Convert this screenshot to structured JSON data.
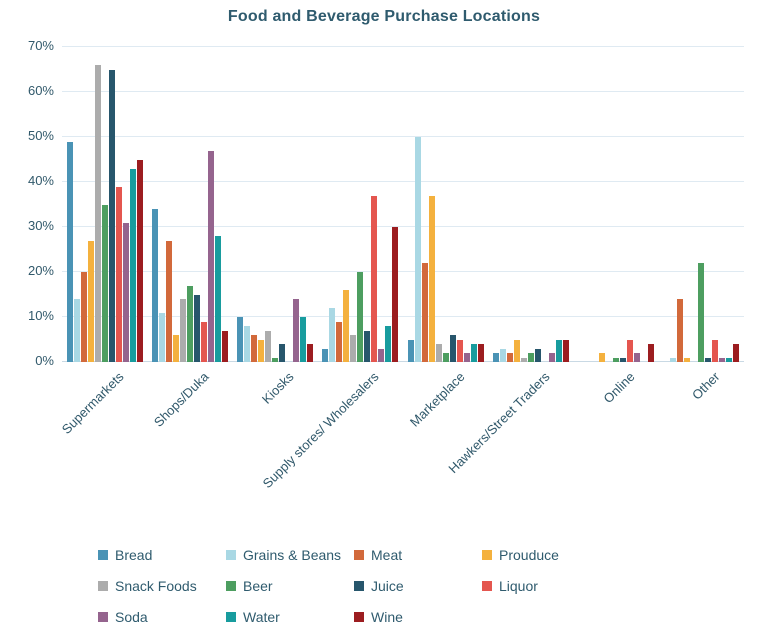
{
  "title": "Food and Beverage Purchase Locations",
  "chart_data": {
    "type": "bar",
    "title": "Food and Beverage Purchase Locations",
    "categories": [
      "Supermarkets",
      "Shops/Duka",
      "Kiosks",
      "Supply stores/ Wholesalers",
      "Marketplace",
      "Hawkers/Street Traders",
      "Online",
      "Other"
    ],
    "unit": "%",
    "ylim": [
      0,
      70
    ],
    "ytick_step": 10,
    "ytick_labels": [
      "0%",
      "10%",
      "20%",
      "30%",
      "40%",
      "50%",
      "60%",
      "70%"
    ],
    "grid": true,
    "legend_position": "bottom",
    "series": [
      {
        "name": "Bread",
        "color": "#4A93B5",
        "values": [
          49,
          34,
          10,
          3,
          5,
          2,
          0,
          0
        ]
      },
      {
        "name": "Grains & Beans",
        "color": "#A9D8E4",
        "values": [
          14,
          11,
          8,
          12,
          50,
          3,
          0,
          1
        ]
      },
      {
        "name": "Meat",
        "color": "#D2693B",
        "values": [
          20,
          27,
          6,
          9,
          22,
          2,
          0,
          14
        ]
      },
      {
        "name": "Prouduce",
        "color": "#F4B13E",
        "values": [
          27,
          6,
          5,
          16,
          37,
          5,
          2,
          1
        ]
      },
      {
        "name": "Snack Foods",
        "color": "#ACACAC",
        "values": [
          66,
          14,
          7,
          6,
          4,
          1,
          0,
          0
        ]
      },
      {
        "name": "Beer",
        "color": "#4D9E60",
        "values": [
          35,
          17,
          1,
          20,
          2,
          2,
          1,
          22
        ]
      },
      {
        "name": "Juice",
        "color": "#27566C",
        "values": [
          65,
          15,
          4,
          7,
          6,
          3,
          1,
          1
        ]
      },
      {
        "name": "Liquor",
        "color": "#E4564F",
        "values": [
          39,
          9,
          0,
          37,
          5,
          0,
          5,
          5
        ]
      },
      {
        "name": "Soda",
        "color": "#95648E",
        "values": [
          31,
          47,
          14,
          3,
          2,
          2,
          2,
          1
        ]
      },
      {
        "name": "Water",
        "color": "#189C9E",
        "values": [
          43,
          28,
          10,
          8,
          4,
          5,
          0,
          1
        ]
      },
      {
        "name": "Wine",
        "color": "#9C1D20",
        "values": [
          45,
          7,
          4,
          30,
          4,
          5,
          4,
          4
        ]
      }
    ]
  },
  "colors": {
    "text": "#2F5B6E",
    "axis_text": "#31596B",
    "gridline": "#DFEAF2",
    "baseline": "#C9D9E4",
    "background": "#FFFFFF"
  }
}
